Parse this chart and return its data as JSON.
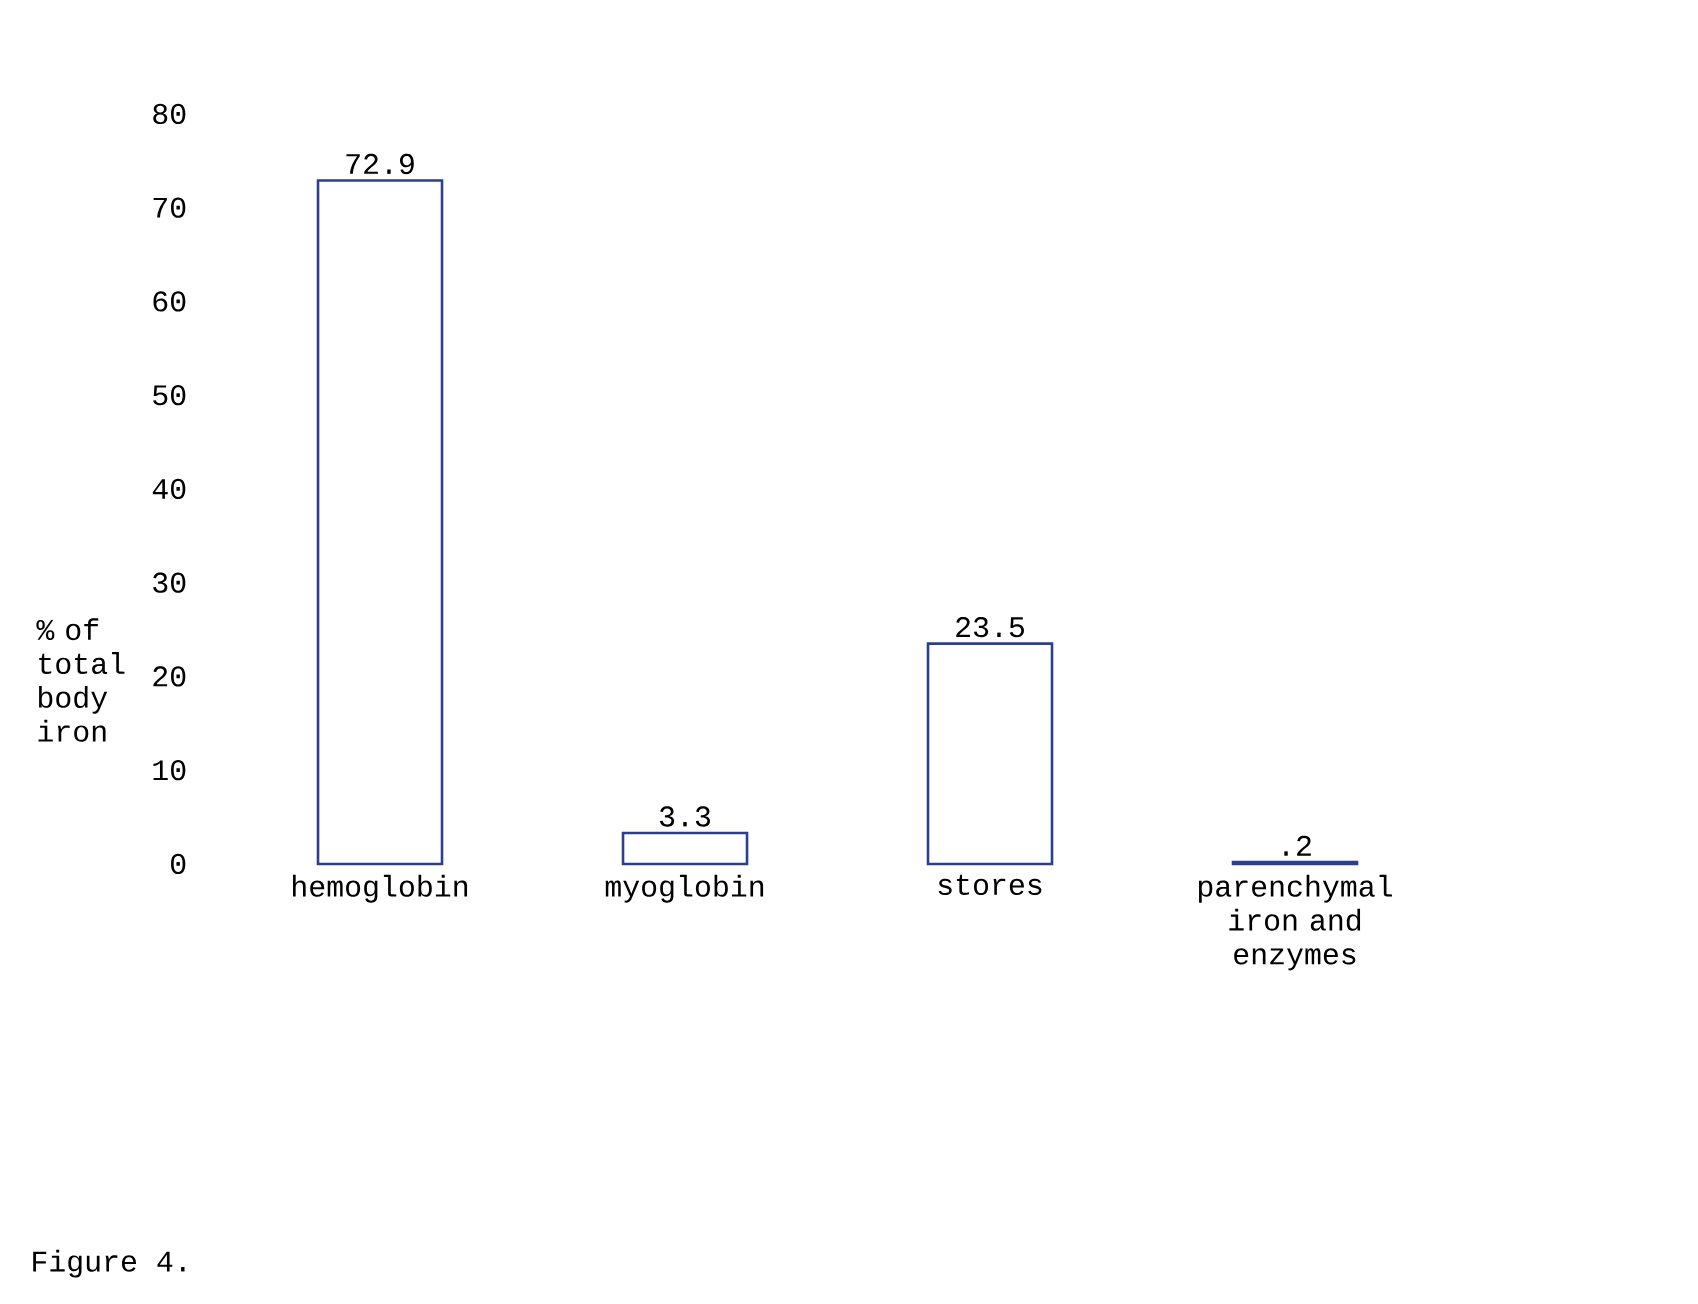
{
  "chart_data": {
    "type": "bar",
    "ylabel": "% of total body iron",
    "categories": [
      "hemoglobin",
      "myoglobin",
      "stores",
      "parenchymal iron and enzymes"
    ],
    "values": [
      72.9,
      3.3,
      23.5,
      0.2
    ],
    "value_labels": [
      "72.9",
      "3.3",
      "23.5",
      ".2"
    ],
    "color": "#2b3f8c",
    "ylim": [
      0,
      80
    ],
    "yticks": [
      0,
      10,
      20,
      30,
      40,
      50,
      60,
      70,
      80
    ],
    "grid": false,
    "annotations": [
      "Figure 4."
    ]
  }
}
